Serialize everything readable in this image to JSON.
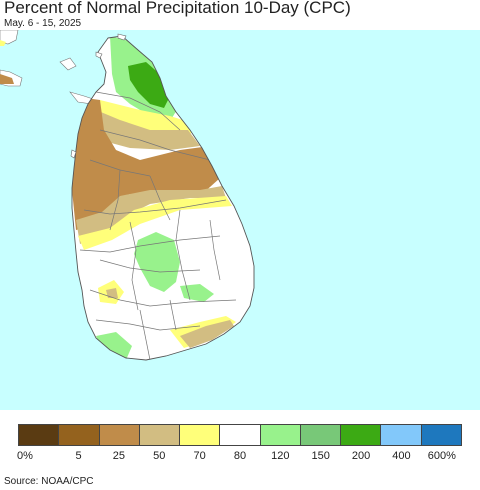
{
  "title": "Percent of Normal Precipitation 10-Day (CPC)",
  "date_range": "May. 6 - 15, 2025",
  "source": "Source: NOAA/CPC",
  "legend": {
    "colors": [
      "#5a3b12",
      "#94621e",
      "#c08c4a",
      "#d2bd82",
      "#ffff7a",
      "#ffffff",
      "#98f28c",
      "#78c878",
      "#3caa14",
      "#82c8fa",
      "#1e78be"
    ],
    "labels": [
      "0%",
      "5",
      "25",
      "50",
      "70",
      "80",
      "120",
      "150",
      "200",
      "400",
      "600%"
    ]
  },
  "map": {
    "region": "Sri Lanka",
    "ocean_color": "#c8ffff",
    "land_color": "#ffffff"
  }
}
